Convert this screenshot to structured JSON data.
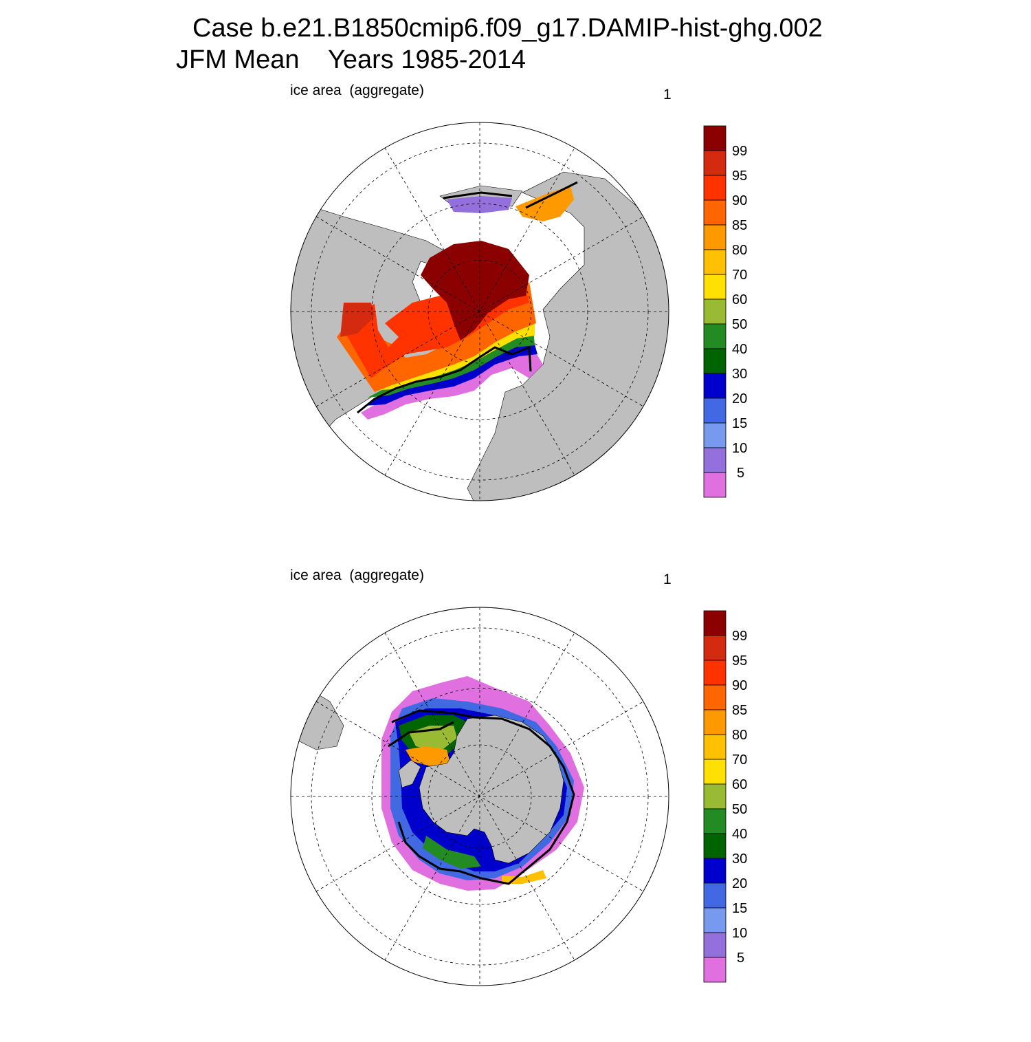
{
  "figure": {
    "title_line1": "Case b.e21.B1850cmip6.f09_g17.DAMIP-hist-ghg.002",
    "title_line2": "JFM Mean    Years 1985-2014"
  },
  "panels": [
    {
      "id": "north",
      "hemisphere": "Northern Hemisphere (Arctic)",
      "label": "ice area  (aggregate)",
      "index": "1"
    },
    {
      "id": "south",
      "hemisphere": "Southern Hemisphere (Antarctic)",
      "label": "ice area  (aggregate)",
      "index": "1"
    }
  ],
  "colorbar": {
    "unit": "%",
    "levels": [
      "99",
      "95",
      "90",
      "85",
      "80",
      "70",
      "60",
      "50",
      "40",
      "30",
      "20",
      "15",
      "10",
      "5"
    ],
    "colors": [
      "#8b0000",
      "#d42a10",
      "#ff3300",
      "#ff6600",
      "#ff9900",
      "#ffc000",
      "#ffe000",
      "#99bb33",
      "#228b22",
      "#006400",
      "#0000cd",
      "#4169e1",
      "#7799ee",
      "#9370db",
      "#e070e0"
    ]
  },
  "chart_data": {
    "type": "polar-stereographic filled contour map",
    "variable": "ice area  (aggregate)",
    "season": "JFM",
    "period": "Years 1985-2014",
    "contour_levels": [
      5,
      10,
      15,
      20,
      30,
      40,
      50,
      60,
      70,
      80,
      85,
      90,
      95,
      99
    ],
    "land_color": "#bebebe",
    "overlay": "black contour line = observed ice edge"
  }
}
